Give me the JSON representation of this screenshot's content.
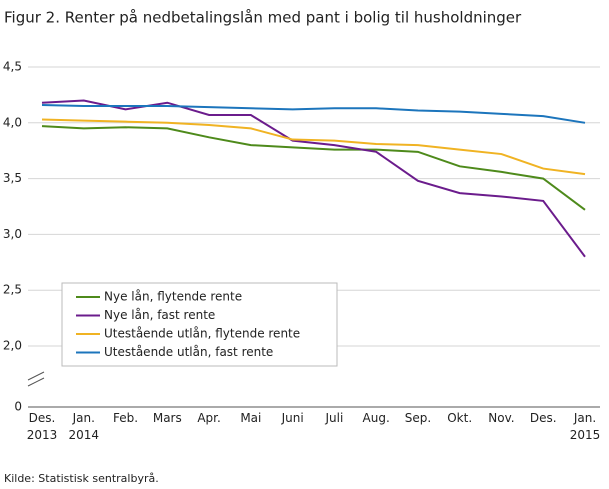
{
  "chart_data": {
    "type": "line",
    "title": "Figur 2. Renter på nedbetalingslån med pant i bolig til husholdninger",
    "source": "Kilde: Statistisk sentralbyrå.",
    "categories": [
      "Des.\n2013",
      "Jan.\n2014",
      "Feb.",
      "Mars",
      "Apr.",
      "Mai",
      "Juni",
      "Juli",
      "Aug.",
      "Sep.",
      "Okt.",
      "Nov.",
      "Des.",
      "Jan.\n2015"
    ],
    "series": [
      {
        "name": "Nye lån, flytende rente",
        "color": "#4e8a1b",
        "values": [
          3.97,
          3.95,
          3.96,
          3.95,
          3.87,
          3.8,
          3.78,
          3.76,
          3.76,
          3.74,
          3.61,
          3.56,
          3.5,
          3.22
        ]
      },
      {
        "name": "Nye lån, fast rente",
        "color": "#6b1c8c",
        "values": [
          4.18,
          4.2,
          4.12,
          4.18,
          4.07,
          4.07,
          3.84,
          3.8,
          3.74,
          3.48,
          3.37,
          3.34,
          3.3,
          2.8
        ]
      },
      {
        "name": "Utestående utlån, flytende rente",
        "color": "#f0b323",
        "values": [
          4.03,
          4.02,
          4.01,
          4.0,
          3.98,
          3.95,
          3.85,
          3.84,
          3.81,
          3.8,
          3.76,
          3.72,
          3.59,
          3.54
        ]
      },
      {
        "name": "Utestående utlån, fast rente",
        "color": "#1c75bc",
        "values": [
          4.16,
          4.15,
          4.15,
          4.15,
          4.14,
          4.13,
          4.12,
          4.13,
          4.13,
          4.11,
          4.1,
          4.08,
          4.06,
          4.0
        ]
      }
    ],
    "ylim": [
      0,
      4.5
    ],
    "yticks": [
      0,
      {
        "value": 2.0,
        "label": "2,0"
      },
      {
        "value": 2.5,
        "label": "2,5"
      },
      {
        "value": 3.0,
        "label": "3,0"
      },
      {
        "value": 3.5,
        "label": "3,5"
      },
      {
        "value": 4.0,
        "label": "4,0"
      },
      {
        "value": 4.5,
        "label": "4,5"
      }
    ],
    "grid": true
  }
}
